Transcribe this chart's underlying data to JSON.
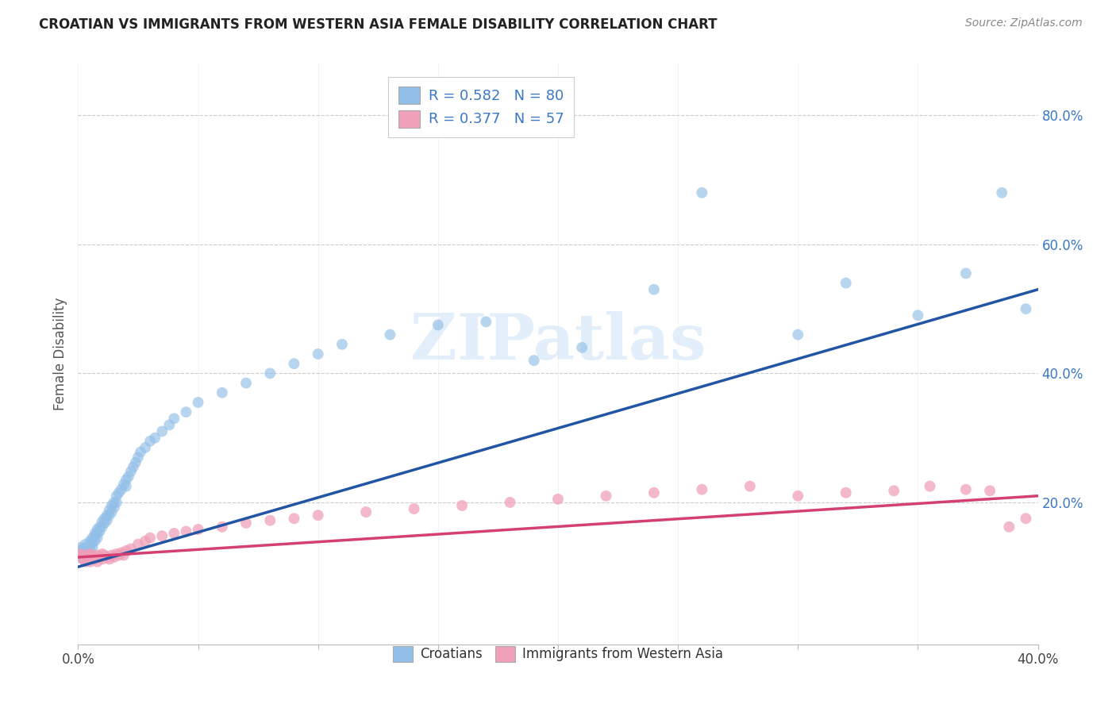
{
  "title": "CROATIAN VS IMMIGRANTS FROM WESTERN ASIA FEMALE DISABILITY CORRELATION CHART",
  "source": "Source: ZipAtlas.com",
  "ylabel": "Female Disability",
  "xlim": [
    0.0,
    0.4
  ],
  "ylim": [
    -0.02,
    0.88
  ],
  "x_ticks": [
    0.0,
    0.05,
    0.1,
    0.15,
    0.2,
    0.25,
    0.3,
    0.35,
    0.4
  ],
  "x_tick_labels_show": [
    "0.0%",
    "",
    "",
    "",
    "",
    "",
    "",
    "",
    "40.0%"
  ],
  "y_ticks": [
    0.2,
    0.4,
    0.6,
    0.8
  ],
  "y_tick_labels": [
    "20.0%",
    "40.0%",
    "60.0%",
    "80.0%"
  ],
  "grid_color": "#cccccc",
  "background_color": "#ffffff",
  "blue_color": "#92bfe8",
  "blue_line_color": "#2255a4",
  "pink_color": "#f0a0b8",
  "pink_line_color": "#d44070",
  "legend_color": "#3b78c3",
  "watermark": "ZIPatlas",
  "blue_trendline_x": [
    0.0,
    0.4
  ],
  "blue_trendline_y": [
    0.1,
    0.53
  ],
  "pink_trendline_x": [
    0.0,
    0.4
  ],
  "pink_trendline_y": [
    0.115,
    0.21
  ],
  "blue_scatter_x": [
    0.001,
    0.001,
    0.001,
    0.002,
    0.002,
    0.002,
    0.002,
    0.003,
    0.003,
    0.003,
    0.003,
    0.004,
    0.004,
    0.004,
    0.005,
    0.005,
    0.005,
    0.006,
    0.006,
    0.006,
    0.007,
    0.007,
    0.007,
    0.008,
    0.008,
    0.008,
    0.009,
    0.009,
    0.01,
    0.01,
    0.011,
    0.011,
    0.012,
    0.012,
    0.013,
    0.013,
    0.014,
    0.014,
    0.015,
    0.015,
    0.016,
    0.016,
    0.017,
    0.018,
    0.019,
    0.02,
    0.02,
    0.021,
    0.022,
    0.023,
    0.024,
    0.025,
    0.026,
    0.028,
    0.03,
    0.032,
    0.035,
    0.038,
    0.04,
    0.045,
    0.05,
    0.06,
    0.07,
    0.08,
    0.09,
    0.1,
    0.11,
    0.13,
    0.15,
    0.17,
    0.19,
    0.21,
    0.24,
    0.26,
    0.3,
    0.32,
    0.35,
    0.37,
    0.385,
    0.395
  ],
  "blue_scatter_y": [
    0.13,
    0.122,
    0.115,
    0.128,
    0.118,
    0.125,
    0.112,
    0.13,
    0.122,
    0.118,
    0.135,
    0.125,
    0.12,
    0.115,
    0.14,
    0.135,
    0.128,
    0.145,
    0.138,
    0.13,
    0.152,
    0.148,
    0.14,
    0.158,
    0.152,
    0.145,
    0.162,
    0.155,
    0.17,
    0.162,
    0.175,
    0.168,
    0.18,
    0.172,
    0.188,
    0.18,
    0.195,
    0.185,
    0.2,
    0.192,
    0.21,
    0.2,
    0.215,
    0.22,
    0.228,
    0.235,
    0.225,
    0.24,
    0.248,
    0.255,
    0.262,
    0.27,
    0.278,
    0.285,
    0.295,
    0.3,
    0.31,
    0.32,
    0.33,
    0.34,
    0.355,
    0.37,
    0.385,
    0.4,
    0.415,
    0.43,
    0.445,
    0.46,
    0.475,
    0.48,
    0.42,
    0.44,
    0.53,
    0.68,
    0.46,
    0.54,
    0.49,
    0.555,
    0.68,
    0.5
  ],
  "pink_scatter_x": [
    0.001,
    0.002,
    0.002,
    0.003,
    0.003,
    0.004,
    0.004,
    0.005,
    0.005,
    0.006,
    0.006,
    0.007,
    0.008,
    0.008,
    0.009,
    0.01,
    0.01,
    0.011,
    0.012,
    0.013,
    0.014,
    0.015,
    0.016,
    0.017,
    0.018,
    0.019,
    0.02,
    0.022,
    0.025,
    0.028,
    0.03,
    0.035,
    0.04,
    0.045,
    0.05,
    0.06,
    0.07,
    0.08,
    0.09,
    0.1,
    0.12,
    0.14,
    0.16,
    0.18,
    0.2,
    0.22,
    0.24,
    0.26,
    0.28,
    0.3,
    0.32,
    0.34,
    0.355,
    0.37,
    0.38,
    0.388,
    0.395
  ],
  "pink_scatter_y": [
    0.12,
    0.112,
    0.118,
    0.108,
    0.115,
    0.118,
    0.112,
    0.12,
    0.108,
    0.115,
    0.118,
    0.112,
    0.118,
    0.108,
    0.115,
    0.12,
    0.112,
    0.118,
    0.115,
    0.112,
    0.118,
    0.115,
    0.12,
    0.118,
    0.122,
    0.118,
    0.125,
    0.128,
    0.135,
    0.14,
    0.145,
    0.148,
    0.152,
    0.155,
    0.158,
    0.162,
    0.168,
    0.172,
    0.175,
    0.18,
    0.185,
    0.19,
    0.195,
    0.2,
    0.205,
    0.21,
    0.215,
    0.22,
    0.225,
    0.21,
    0.215,
    0.218,
    0.225,
    0.22,
    0.218,
    0.162,
    0.175
  ]
}
